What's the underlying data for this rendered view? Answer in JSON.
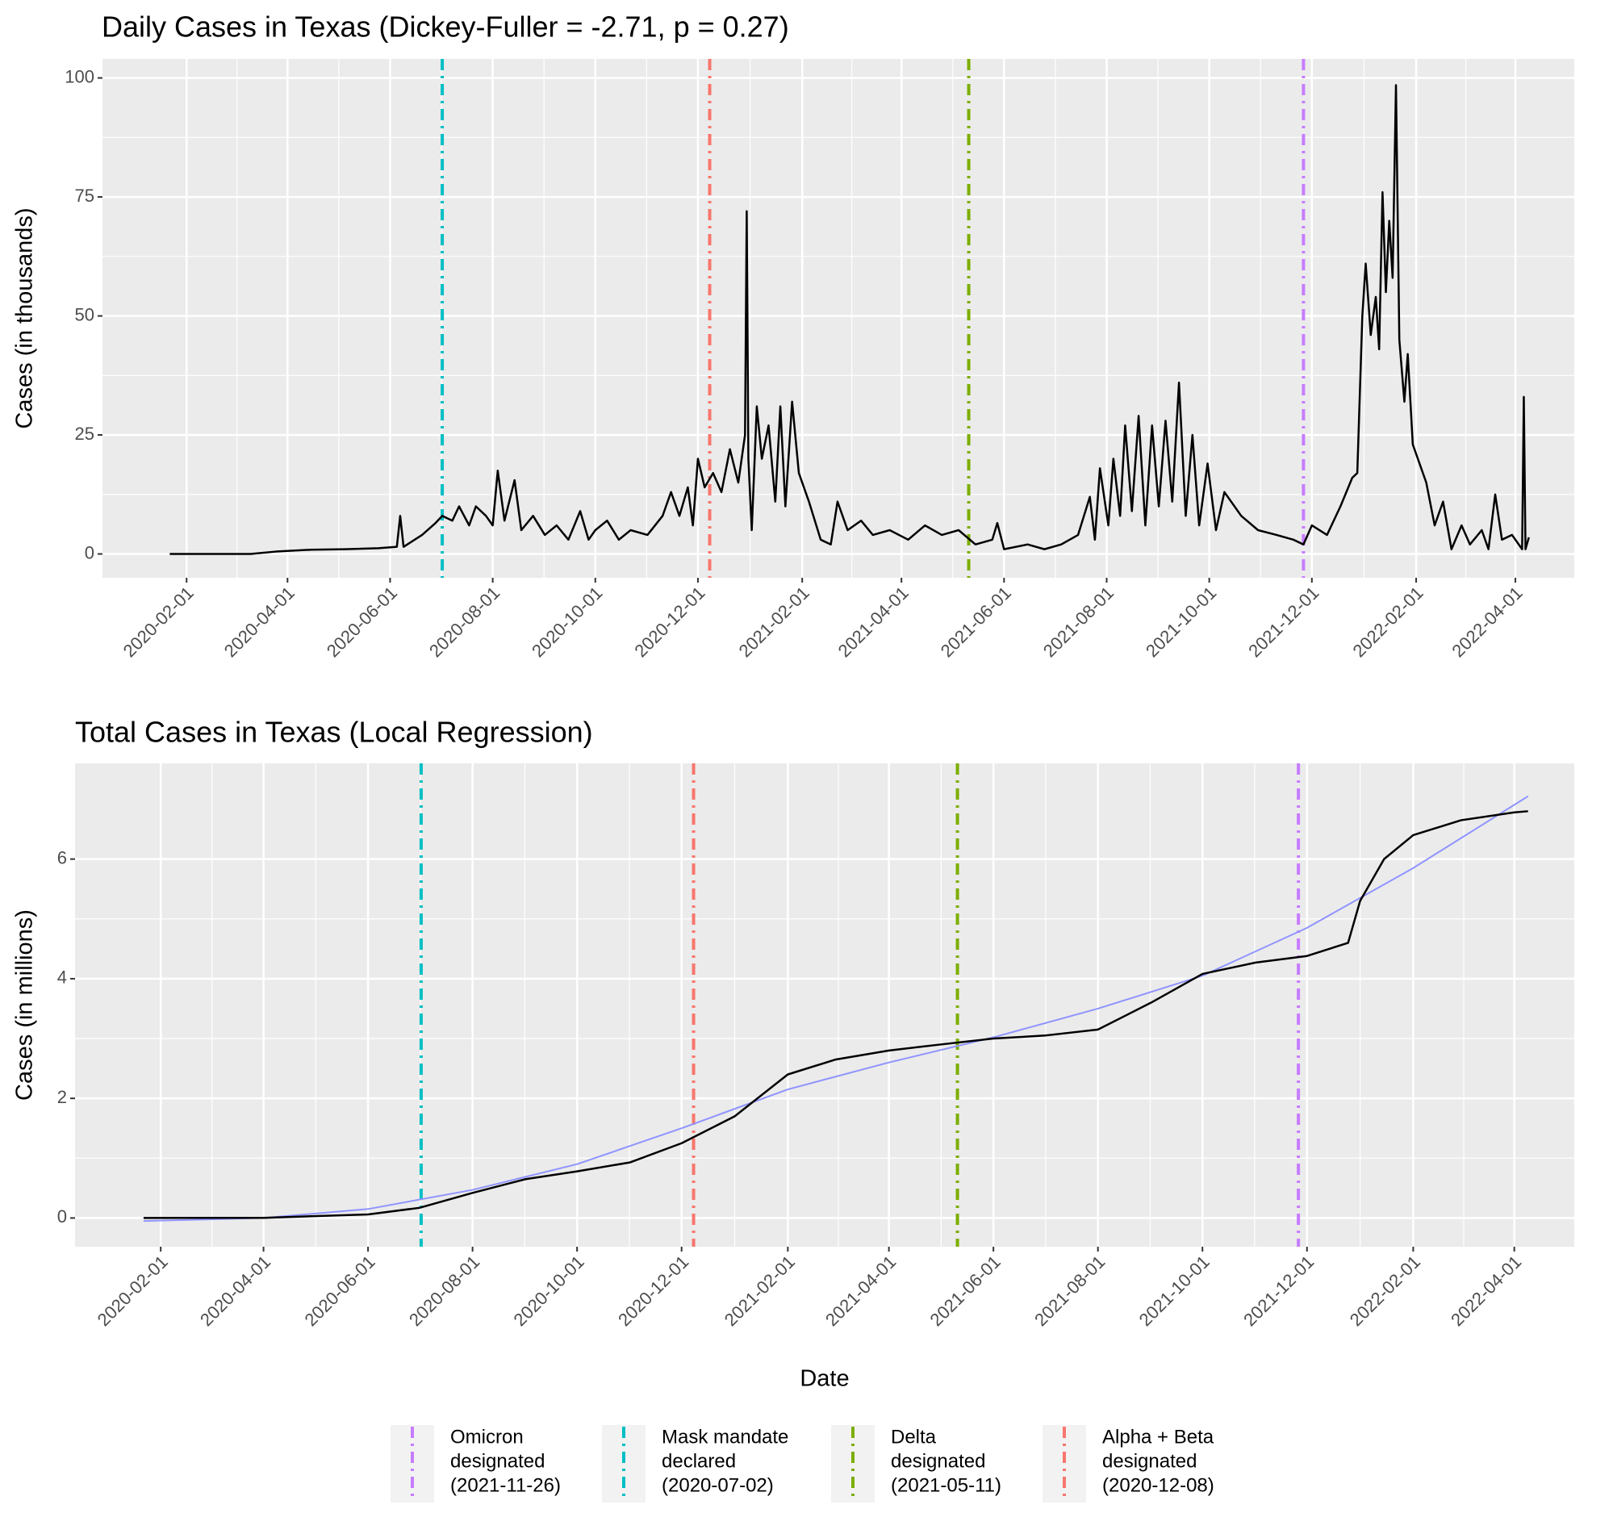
{
  "chart_data": [
    {
      "type": "line",
      "title": "Daily Cases in Texas (Dickey-Fuller = -2.71, p = 0.27)",
      "y_label": "Cases (in thousands)",
      "xlim": [
        "2019-12-13",
        "2022-05-06"
      ],
      "ylim": [
        -5,
        104
      ],
      "xticks": [
        "2020-02-01",
        "2020-04-01",
        "2020-06-01",
        "2020-08-01",
        "2020-10-01",
        "2020-12-01",
        "2021-02-01",
        "2021-04-01",
        "2021-06-01",
        "2021-08-01",
        "2021-10-01",
        "2021-12-01",
        "2022-02-01",
        "2022-04-01"
      ],
      "yticks": [
        0,
        25,
        50,
        75,
        100
      ],
      "grid": true,
      "events": [
        {
          "x": "2021-11-26",
          "color": "#C77CFF"
        },
        {
          "x": "2020-07-02",
          "color": "#00BFC4"
        },
        {
          "x": "2021-05-11",
          "color": "#7CAE00"
        },
        {
          "x": "2020-12-08",
          "color": "#F8766D"
        }
      ],
      "series": [
        {
          "color": "#000000",
          "x": [
            "2020-01-22",
            "2020-03-10",
            "2020-03-25",
            "2020-04-15",
            "2020-05-05",
            "2020-05-25",
            "2020-06-05",
            "2020-06-07",
            "2020-06-09",
            "2020-06-20",
            "2020-06-28",
            "2020-07-02",
            "2020-07-08",
            "2020-07-12",
            "2020-07-18",
            "2020-07-22",
            "2020-07-28",
            "2020-08-01",
            "2020-08-04",
            "2020-08-08",
            "2020-08-14",
            "2020-08-18",
            "2020-08-25",
            "2020-09-01",
            "2020-09-08",
            "2020-09-15",
            "2020-09-22",
            "2020-09-27",
            "2020-10-01",
            "2020-10-08",
            "2020-10-15",
            "2020-10-22",
            "2020-11-01",
            "2020-11-10",
            "2020-11-15",
            "2020-11-20",
            "2020-11-25",
            "2020-11-28",
            "2020-12-01",
            "2020-12-05",
            "2020-12-10",
            "2020-12-15",
            "2020-12-20",
            "2020-12-25",
            "2020-12-29",
            "2020-12-30",
            "2020-12-31",
            "2021-01-02",
            "2021-01-05",
            "2021-01-08",
            "2021-01-12",
            "2021-01-16",
            "2021-01-19",
            "2021-01-22",
            "2021-01-26",
            "2021-01-30",
            "2021-02-05",
            "2021-02-12",
            "2021-02-18",
            "2021-02-22",
            "2021-02-28",
            "2021-03-08",
            "2021-03-15",
            "2021-03-25",
            "2021-04-05",
            "2021-04-15",
            "2021-04-25",
            "2021-05-05",
            "2021-05-15",
            "2021-05-25",
            "2021-05-28",
            "2021-06-01",
            "2021-06-15",
            "2021-06-25",
            "2021-07-05",
            "2021-07-15",
            "2021-07-22",
            "2021-07-25",
            "2021-07-28",
            "2021-08-02",
            "2021-08-05",
            "2021-08-09",
            "2021-08-12",
            "2021-08-16",
            "2021-08-20",
            "2021-08-24",
            "2021-08-28",
            "2021-09-01",
            "2021-09-05",
            "2021-09-09",
            "2021-09-13",
            "2021-09-17",
            "2021-09-21",
            "2021-09-25",
            "2021-09-30",
            "2021-10-05",
            "2021-10-10",
            "2021-10-20",
            "2021-10-30",
            "2021-11-10",
            "2021-11-20",
            "2021-11-26",
            "2021-12-01",
            "2021-12-10",
            "2021-12-18",
            "2021-12-25",
            "2021-12-28",
            "2021-12-31",
            "2022-01-02",
            "2022-01-05",
            "2022-01-08",
            "2022-01-10",
            "2022-01-12",
            "2022-01-14",
            "2022-01-16",
            "2022-01-18",
            "2022-01-20",
            "2022-01-22",
            "2022-01-25",
            "2022-01-27",
            "2022-01-30",
            "2022-02-02",
            "2022-02-07",
            "2022-02-12",
            "2022-02-17",
            "2022-02-22",
            "2022-02-28",
            "2022-03-05",
            "2022-03-12",
            "2022-03-16",
            "2022-03-20",
            "2022-03-24",
            "2022-03-30",
            "2022-04-05",
            "2022-04-06",
            "2022-04-07",
            "2022-04-09"
          ],
          "values": [
            0,
            0,
            0.5,
            0.9,
            1.0,
            1.2,
            1.5,
            8,
            1.5,
            4,
            6.5,
            8,
            7,
            10,
            6,
            10,
            8,
            6,
            17.5,
            7,
            15.5,
            5,
            8,
            4,
            6,
            3,
            9,
            3,
            5,
            7,
            3,
            5,
            4,
            8,
            13,
            8,
            14,
            6,
            20,
            14,
            17,
            13,
            22,
            15,
            25,
            72,
            20,
            5,
            31,
            20,
            27,
            11,
            31,
            10,
            32,
            17,
            11,
            3,
            2,
            11,
            5,
            7,
            4,
            5,
            3,
            6,
            4,
            5,
            2,
            3,
            6.5,
            1,
            2,
            1,
            2,
            4,
            12,
            3,
            18,
            6,
            20,
            8,
            27,
            9,
            29,
            6,
            27,
            10,
            28,
            11,
            36,
            8,
            25,
            6,
            19,
            5,
            13,
            8,
            5,
            4,
            3,
            2,
            6,
            4,
            10,
            16,
            17,
            50,
            61,
            46,
            54,
            43,
            76,
            55,
            70,
            58,
            98.5,
            45,
            32,
            42,
            23,
            20,
            15,
            6,
            11,
            1,
            6,
            2,
            5,
            1,
            12.5,
            3,
            4,
            1,
            33,
            1,
            3.5
          ]
        }
      ]
    },
    {
      "type": "line",
      "title": "Total Cases in Texas (Local Regression)",
      "y_label": "Cases (in millions)",
      "x_label": "Date",
      "xlim": [
        "2019-12-13",
        "2022-05-06"
      ],
      "ylim": [
        -0.48,
        7.6
      ],
      "xticks": [
        "2020-02-01",
        "2020-04-01",
        "2020-06-01",
        "2020-08-01",
        "2020-10-01",
        "2020-12-01",
        "2021-02-01",
        "2021-04-01",
        "2021-06-01",
        "2021-08-01",
        "2021-10-01",
        "2021-12-01",
        "2022-02-01",
        "2022-04-01"
      ],
      "yticks": [
        0,
        2,
        4,
        6
      ],
      "grid": true,
      "events": [
        {
          "x": "2021-11-26",
          "color": "#C77CFF",
          "label": [
            "Omicron",
            "designated",
            "(2021-11-26)"
          ]
        },
        {
          "x": "2020-07-02",
          "color": "#00BFC4",
          "label": [
            "Mask mandate",
            "declared",
            "(2020-07-02)"
          ]
        },
        {
          "x": "2021-05-11",
          "color": "#7CAE00",
          "label": [
            "Delta",
            "designated",
            "(2021-05-11)"
          ]
        },
        {
          "x": "2020-12-08",
          "color": "#F8766D",
          "label": [
            "Alpha + Beta",
            "designated",
            "(2020-12-08)"
          ]
        }
      ],
      "series": [
        {
          "color": "#8F94FF",
          "x": [
            "2020-01-22",
            "2020-04-01",
            "2020-06-01",
            "2020-08-01",
            "2020-10-01",
            "2020-12-01",
            "2021-02-01",
            "2021-04-01",
            "2021-06-01",
            "2021-08-01",
            "2021-10-01",
            "2021-12-01",
            "2022-02-01",
            "2022-04-09"
          ],
          "values": [
            -0.05,
            0.0,
            0.15,
            0.47,
            0.9,
            1.5,
            2.15,
            2.6,
            3.02,
            3.5,
            4.05,
            4.85,
            5.85,
            7.05
          ]
        },
        {
          "color": "#000000",
          "x": [
            "2020-01-22",
            "2020-04-01",
            "2020-06-01",
            "2020-07-01",
            "2020-08-01",
            "2020-09-01",
            "2020-10-01",
            "2020-11-01",
            "2020-12-01",
            "2021-01-01",
            "2021-02-01",
            "2021-03-01",
            "2021-04-01",
            "2021-05-01",
            "2021-06-01",
            "2021-07-01",
            "2021-08-01",
            "2021-09-01",
            "2021-10-01",
            "2021-11-01",
            "2021-12-01",
            "2021-12-25",
            "2022-01-01",
            "2022-01-15",
            "2022-02-01",
            "2022-03-01",
            "2022-04-01",
            "2022-04-09"
          ],
          "values": [
            0,
            0.003,
            0.06,
            0.17,
            0.42,
            0.65,
            0.78,
            0.93,
            1.25,
            1.7,
            2.4,
            2.65,
            2.8,
            2.9,
            3.0,
            3.05,
            3.15,
            3.6,
            4.08,
            4.27,
            4.38,
            4.6,
            5.3,
            6.0,
            6.4,
            6.65,
            6.78,
            6.8
          ]
        }
      ]
    }
  ]
}
